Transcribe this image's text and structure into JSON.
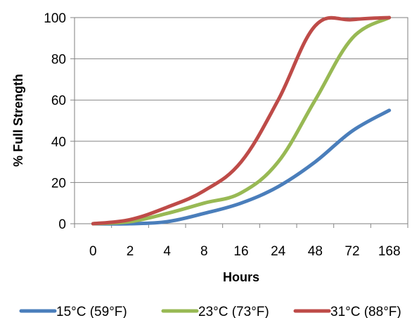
{
  "chart_data": {
    "type": "line",
    "title": "",
    "xlabel": "Hours",
    "ylabel": "% Full Strength",
    "categories": [
      "0",
      "2",
      "4",
      "8",
      "16",
      "24",
      "48",
      "72",
      "168"
    ],
    "ylim": [
      0,
      100
    ],
    "yticks": [
      0,
      20,
      40,
      60,
      80,
      100
    ],
    "grid": true,
    "legend_position": "bottom",
    "series": [
      {
        "name": "15°C (59°F)",
        "color": "#4a7ebb",
        "values": [
          0,
          0,
          1,
          5,
          10,
          18,
          30,
          45,
          55
        ]
      },
      {
        "name": "23°C (73°F)",
        "color": "#98b954",
        "values": [
          0,
          1,
          5,
          10,
          15,
          30,
          60,
          90,
          100
        ]
      },
      {
        "name": "31°C (88°F)",
        "color": "#be4b48",
        "values": [
          0,
          2,
          8,
          16,
          30,
          60,
          96,
          99,
          100
        ]
      }
    ]
  }
}
